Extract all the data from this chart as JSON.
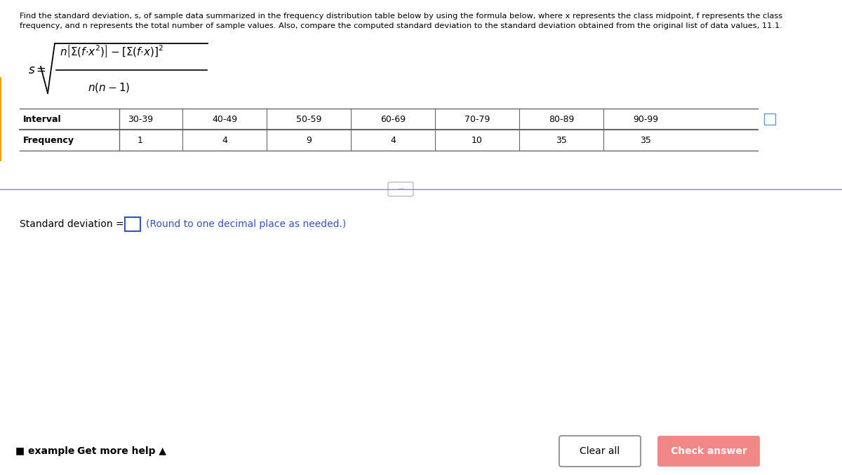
{
  "description_line1": "Find the standard deviation, s, of sample data summarized in the frequency distribution table below by using the formula below, where x represents the class midpoint, f represents the class",
  "description_line2": "frequency, and n represents the total number of sample values. Also, compare the computed standard deviation to the standard deviation obtained from the original list of data values, 11.1.",
  "intervals": [
    "30-39",
    "40-49",
    "50-59",
    "60-69",
    "70-79",
    "80-89",
    "90-99"
  ],
  "frequencies": [
    1,
    4,
    9,
    4,
    10,
    35,
    35
  ],
  "std_deviation_label": "Standard deviation = ",
  "round_text": "(Round to one decimal place as needed.)",
  "example_text": "■ example",
  "get_more_help_text": "Get more help ▲",
  "clear_all_text": "Clear all",
  "check_answer_text": "Check answer",
  "bg_color": "#ffffff",
  "footer_bg_color": "#eeeeee",
  "text_color": "#000000",
  "blue_color": "#3355bb",
  "table_line_color": "#666666",
  "divider_color": "#8888bb",
  "button_clear_border": "#999999",
  "button_check_color": "#f08888",
  "left_accent_color": "#f0a000",
  "desc_fontsize": 8.2,
  "formula_fontsize": 11,
  "table_fontsize": 9
}
